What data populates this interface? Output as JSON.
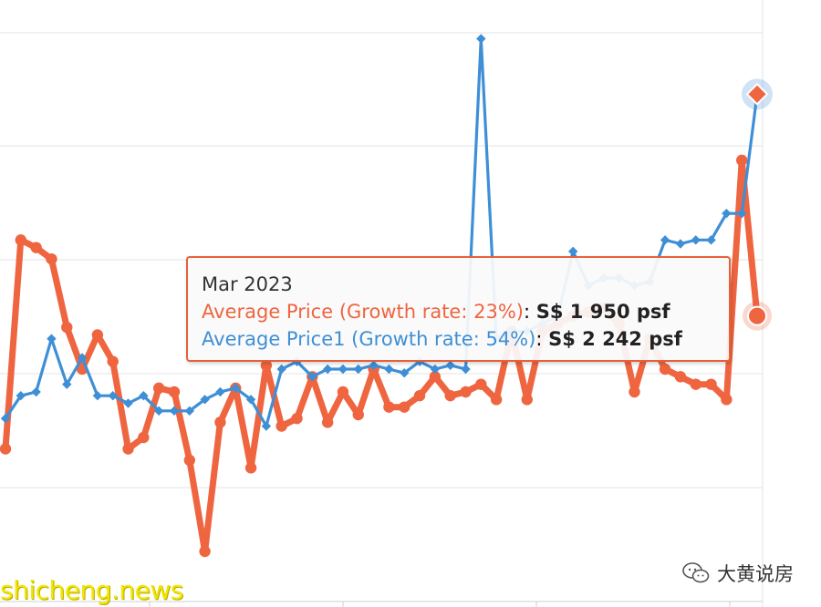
{
  "chart_data": {
    "type": "line",
    "series": [
      {
        "name": "Average Price",
        "color": "#ee6540",
        "marker": "circle",
        "values": [
          1775,
          2050,
          2040,
          2025,
          1935,
          1880,
          1925,
          1890,
          1775,
          1790,
          1855,
          1850,
          1760,
          1640,
          1810,
          1855,
          1750,
          1885,
          1805,
          1815,
          1870,
          1810,
          1850,
          1820,
          1880,
          1830,
          1830,
          1845,
          1870,
          1845,
          1850,
          1860,
          1840,
          1930,
          1840,
          1930,
          1940,
          1950,
          1955,
          1960,
          1940,
          1850,
          1920,
          1880,
          1870,
          1860,
          1860,
          1840,
          2155,
          1950
        ]
      },
      {
        "name": "Average Price1",
        "color": "#3e8fd6",
        "marker": "diamond",
        "values": [
          1815,
          1845,
          1850,
          1920,
          1860,
          1895,
          1845,
          1845,
          1835,
          1845,
          1825,
          1825,
          1825,
          1840,
          1850,
          1855,
          1840,
          1805,
          1880,
          1890,
          1870,
          1880,
          1880,
          1880,
          1885,
          1880,
          1875,
          1890,
          1880,
          1885,
          1880,
          2315,
          1920,
          1930,
          1930,
          1940,
          1950,
          2035,
          1990,
          2000,
          2000,
          1990,
          1995,
          2050,
          2045,
          2050,
          2050,
          2085,
          2085,
          2242
        ]
      }
    ],
    "ylim": [
      1580,
      2330
    ],
    "grid": true,
    "legend": "none"
  },
  "tooltip": {
    "title": "Mar 2023",
    "rows": [
      {
        "label": "Average Price (Growth rate: 23%)",
        "value": "S$ 1 950 psf",
        "color": "#ee6540"
      },
      {
        "label": "Average Price1 (Growth rate: 54%)",
        "value": "S$ 2 242 psf",
        "color": "#3e8fd6"
      }
    ]
  },
  "watermark": "shicheng.news",
  "brand": {
    "text": "大黄说房",
    "icon": "wechat-icon"
  }
}
